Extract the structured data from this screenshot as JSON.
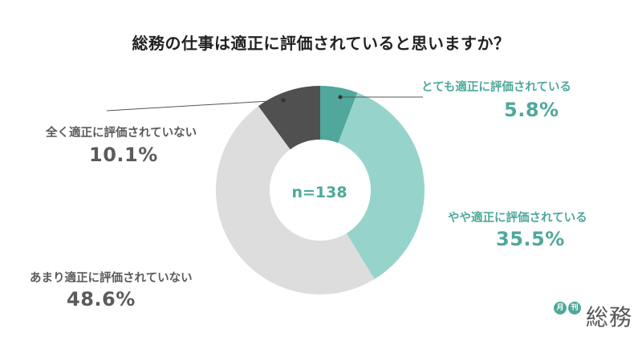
{
  "title": "総務の仕事は適正に評価されていると思いますか？",
  "center_label": "n=138",
  "colors": {
    "teal_dark": "#4fa89b",
    "teal_light": "#96d4cb",
    "gray_light": "#dddddd",
    "gray_dark": "#505050",
    "text_teal": "#4fa89b",
    "text_gray": "#5b5b5b"
  },
  "chart_data": {
    "type": "pie",
    "donut": true,
    "n": 138,
    "categories": [
      "とても適正に評価されている",
      "やや適正に評価されている",
      "あまり適正に評価されていない",
      "全く適正に評価されていない"
    ],
    "values": [
      5.8,
      35.5,
      48.6,
      10.1
    ],
    "value_labels": [
      "5.8%",
      "35.5%",
      "48.6%",
      "10.1%"
    ]
  },
  "logo": {
    "small1": "月",
    "small2": "刊",
    "word": "総務"
  }
}
